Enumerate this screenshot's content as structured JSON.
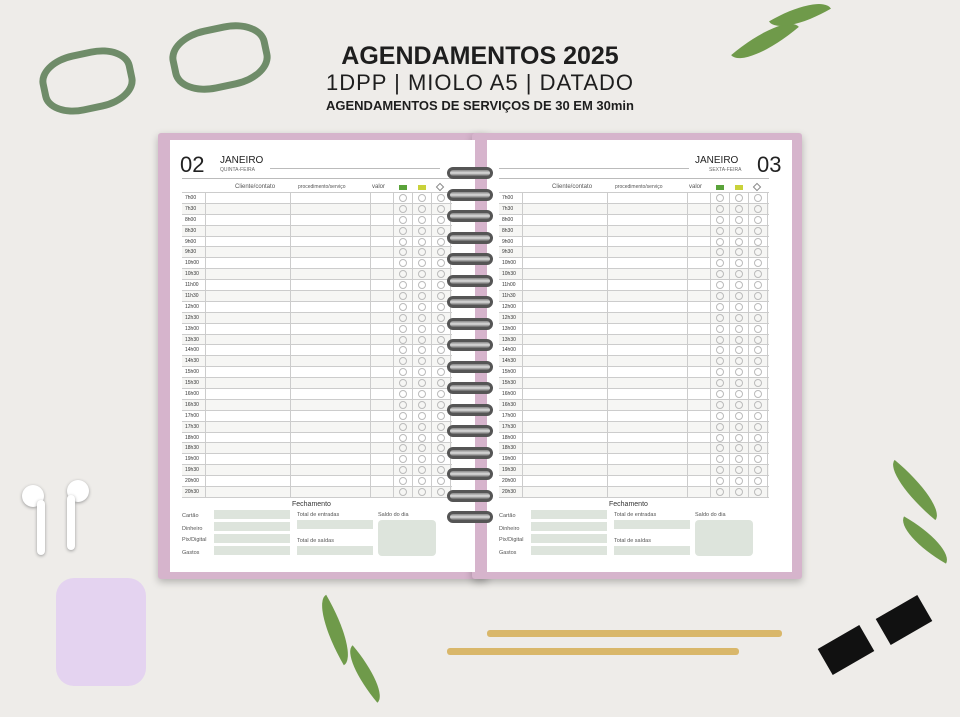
{
  "header": {
    "title": "AGENDAMENTOS 2025",
    "subtitle": "1DPP | MIOLO A5 | DATADO",
    "tagline": "AGENDAMENTOS DE SERVIÇOS DE 30 EM 30min"
  },
  "pages": [
    {
      "day": "02",
      "month": "JANEIRO",
      "weekday": "QUINTA-FEIRA"
    },
    {
      "day": "03",
      "month": "JANEIRO",
      "weekday": "SEXTA-FEIRA"
    }
  ],
  "columns": {
    "cliente": "Cliente/contato",
    "procedimento": "procedimento/serviço",
    "valor": "valor"
  },
  "times": [
    "7h00",
    "7h30",
    "8h00",
    "8h30",
    "9h00",
    "9h30",
    "10h00",
    "10h30",
    "11h00",
    "11h30",
    "12h00",
    "12h30",
    "13h00",
    "13h30",
    "14h00",
    "14h30",
    "15h00",
    "15h30",
    "16h00",
    "16h30",
    "17h00",
    "17h30",
    "18h00",
    "18h30",
    "19h00",
    "19h30",
    "20h00",
    "20h30"
  ],
  "closing": {
    "title": "Fechamento",
    "cartao": "Cartão",
    "dinheiro": "Dinheiro",
    "pix": "Pix/Digital",
    "gastos": "Gastos",
    "entradas": "Total de entradas",
    "saidas": "Total de saídas",
    "saldo": "Saldo do dia"
  },
  "colors": {
    "cover": "#d6b4cc",
    "fields": "#dde4dc",
    "background": "#eeece9"
  }
}
